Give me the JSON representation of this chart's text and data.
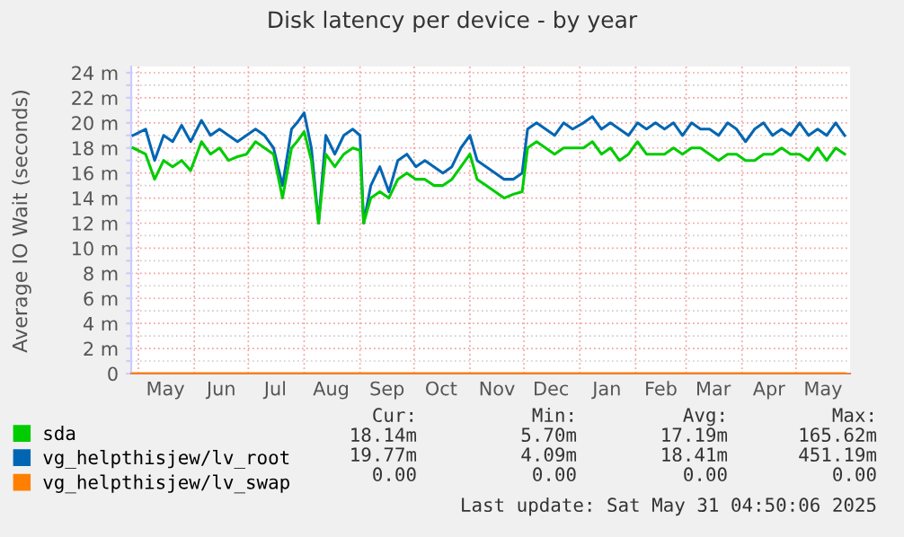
{
  "chart_data": {
    "type": "line",
    "title": "Disk latency per device - by year",
    "ylabel": "Average IO Wait (seconds)",
    "xlim": [
      "2024-04-27",
      "2025-05-31"
    ],
    "xticks": [
      {
        "value": "2024-05-01",
        "label": null
      },
      {
        "value": "2024-05-16",
        "label": "May"
      },
      {
        "value": "2024-06-01",
        "label": null
      },
      {
        "value": "2024-06-16",
        "label": "Jun"
      },
      {
        "value": "2024-07-01",
        "label": null
      },
      {
        "value": "2024-07-16",
        "label": "Jul"
      },
      {
        "value": "2024-08-01",
        "label": null
      },
      {
        "value": "2024-08-16",
        "label": "Aug"
      },
      {
        "value": "2024-09-01",
        "label": null
      },
      {
        "value": "2024-09-16",
        "label": "Sep"
      },
      {
        "value": "2024-10-01",
        "label": null
      },
      {
        "value": "2024-10-16",
        "label": "Oct"
      },
      {
        "value": "2024-11-01",
        "label": null
      },
      {
        "value": "2024-11-16",
        "label": "Nov"
      },
      {
        "value": "2024-12-01",
        "label": null
      },
      {
        "value": "2024-12-16",
        "label": "Dec"
      },
      {
        "value": "2025-01-01",
        "label": null
      },
      {
        "value": "2025-01-16",
        "label": "Jan"
      },
      {
        "value": "2025-02-01",
        "label": null
      },
      {
        "value": "2025-02-15",
        "label": "Feb"
      },
      {
        "value": "2025-03-01",
        "label": null
      },
      {
        "value": "2025-03-16",
        "label": "Mar"
      },
      {
        "value": "2025-04-01",
        "label": null
      },
      {
        "value": "2025-04-16",
        "label": "Apr"
      },
      {
        "value": "2025-05-01",
        "label": null
      },
      {
        "value": "2025-05-16",
        "label": "May"
      }
    ],
    "ylim": [
      0,
      24.5
    ],
    "yticks": [
      0,
      {
        "value": 1,
        "label": null
      },
      {
        "value": 2,
        "label": "2 m"
      },
      {
        "value": 3,
        "label": null
      },
      {
        "value": 4,
        "label": "4 m"
      },
      {
        "value": 5,
        "label": null
      },
      {
        "value": 6,
        "label": "6 m"
      },
      {
        "value": 7,
        "label": null
      },
      {
        "value": 8,
        "label": "8 m"
      },
      {
        "value": 9,
        "label": null
      },
      {
        "value": 10,
        "label": "10 m"
      },
      {
        "value": 11,
        "label": null
      },
      {
        "value": 12,
        "label": "12 m"
      },
      {
        "value": 13,
        "label": null
      },
      {
        "value": 14,
        "label": "14 m"
      },
      {
        "value": 15,
        "label": null
      },
      {
        "value": 16,
        "label": "16 m"
      },
      {
        "value": 17,
        "label": null
      },
      {
        "value": 18,
        "label": "18 m"
      },
      {
        "value": 19,
        "label": null
      },
      {
        "value": 20,
        "label": "20 m"
      },
      {
        "value": 21,
        "label": null
      },
      {
        "value": 22,
        "label": "22 m"
      },
      {
        "value": 23,
        "label": null
      },
      {
        "value": 24,
        "label": "24 m"
      }
    ],
    "grid": true,
    "legend": "bottom left",
    "line_style": "solid",
    "x": [
      "2024-04-28",
      "2024-05-05",
      "2024-05-10",
      "2024-05-15",
      "2024-05-20",
      "2024-05-25",
      "2024-05-30",
      "2024-06-05",
      "2024-06-10",
      "2024-06-15",
      "2024-06-20",
      "2024-06-25",
      "2024-06-30",
      "2024-07-05",
      "2024-07-10",
      "2024-07-15",
      "2024-07-20",
      "2024-07-25",
      "2024-07-28",
      "2024-08-01",
      "2024-08-05",
      "2024-08-09",
      "2024-08-13",
      "2024-08-18",
      "2024-08-23",
      "2024-08-28",
      "2024-09-01",
      "2024-09-03",
      "2024-09-07",
      "2024-09-12",
      "2024-09-17",
      "2024-09-22",
      "2024-09-27",
      "2024-10-02",
      "2024-10-07",
      "2024-10-12",
      "2024-10-17",
      "2024-10-22",
      "2024-10-27",
      "2024-11-01",
      "2024-11-05",
      "2024-11-10",
      "2024-11-15",
      "2024-11-20",
      "2024-11-25",
      "2024-11-30",
      "2024-12-03",
      "2024-12-08",
      "2024-12-13",
      "2024-12-18",
      "2024-12-23",
      "2024-12-28",
      "2025-01-03",
      "2025-01-08",
      "2025-01-13",
      "2025-01-18",
      "2025-01-23",
      "2025-01-28",
      "2025-02-02",
      "2025-02-07",
      "2025-02-12",
      "2025-02-17",
      "2025-02-22",
      "2025-02-27",
      "2025-03-04",
      "2025-03-09",
      "2025-03-14",
      "2025-03-19",
      "2025-03-24",
      "2025-03-29",
      "2025-04-03",
      "2025-04-08",
      "2025-04-13",
      "2025-04-18",
      "2025-04-23",
      "2025-04-28",
      "2025-05-03",
      "2025-05-08",
      "2025-05-13",
      "2025-05-18",
      "2025-05-23",
      "2025-05-28"
    ],
    "series": [
      {
        "name": "sda",
        "color": "#00cc00",
        "values": [
          18,
          17.5,
          15.5,
          17,
          16.5,
          17,
          16.2,
          18.5,
          17.5,
          18,
          17,
          17.3,
          17.5,
          18.5,
          18,
          17.5,
          14,
          18,
          18.5,
          19.3,
          17,
          12,
          17.5,
          16.5,
          17.5,
          18,
          17.8,
          12,
          14,
          14.5,
          14,
          15.5,
          16,
          15.5,
          15.5,
          15,
          15,
          15.5,
          16.5,
          17.5,
          15.5,
          15,
          14.5,
          14,
          14.3,
          14.5,
          18,
          18.5,
          18,
          17.5,
          18,
          18,
          18,
          18.5,
          17.5,
          18,
          17,
          17.5,
          18.5,
          17.5,
          17.5,
          17.5,
          18,
          17.5,
          18,
          18,
          17.5,
          17,
          17.5,
          17.5,
          17,
          17,
          17.5,
          17.5,
          18,
          17.5,
          17.5,
          17,
          18,
          17,
          18,
          17.5
        ]
      },
      {
        "name": "vg_helpthisjew/lv_root",
        "color": "#0066b3",
        "values": [
          19,
          19.5,
          17,
          19,
          18.5,
          19.8,
          18.5,
          20.2,
          19,
          19.5,
          19,
          18.5,
          19,
          19.5,
          19,
          18,
          15,
          19.5,
          20,
          20.8,
          18,
          12,
          19,
          17.5,
          19,
          19.5,
          19,
          12,
          15,
          16.5,
          14.5,
          17,
          17.5,
          16.5,
          17,
          16.5,
          16,
          16.5,
          18,
          19,
          17,
          16.5,
          16,
          15.5,
          15.5,
          16,
          19.5,
          20,
          19.5,
          19,
          20,
          19.5,
          20,
          20.5,
          19.5,
          20,
          19.5,
          19,
          20,
          19.5,
          20,
          19.5,
          20,
          19,
          20,
          19.5,
          19.5,
          19,
          20,
          19.5,
          18.5,
          19.5,
          20,
          19,
          19.5,
          19,
          20,
          19,
          19.5,
          19,
          20,
          19
        ]
      },
      {
        "name": "vg_helpthisjew/lv_swap",
        "color": "#ff8000",
        "values": [
          0,
          0,
          0,
          0,
          0,
          0,
          0,
          0,
          0,
          0,
          0,
          0,
          0,
          0,
          0,
          0,
          0,
          0,
          0,
          0,
          0,
          0,
          0,
          0,
          0,
          0,
          0,
          0,
          0,
          0,
          0,
          0,
          0,
          0,
          0,
          0,
          0,
          0,
          0,
          0,
          0,
          0,
          0,
          0,
          0,
          0,
          0,
          0,
          0,
          0,
          0,
          0,
          0,
          0,
          0,
          0,
          0,
          0,
          0,
          0,
          0,
          0,
          0,
          0,
          0,
          0,
          0,
          0,
          0,
          0,
          0,
          0,
          0,
          0,
          0,
          0,
          0,
          0,
          0,
          0,
          0,
          0
        ]
      }
    ],
    "annotations": [
      "Cur:",
      "Min:",
      "Avg:",
      "Max:",
      "18.14m",
      "5.70m",
      "17.19m",
      "165.62m",
      "19.77m",
      "4.09m",
      "18.41m",
      "451.19m",
      "0.00",
      "0.00",
      "0.00",
      "0.00",
      "Last update: Sat May 31 04:50:06 2025"
    ]
  }
}
